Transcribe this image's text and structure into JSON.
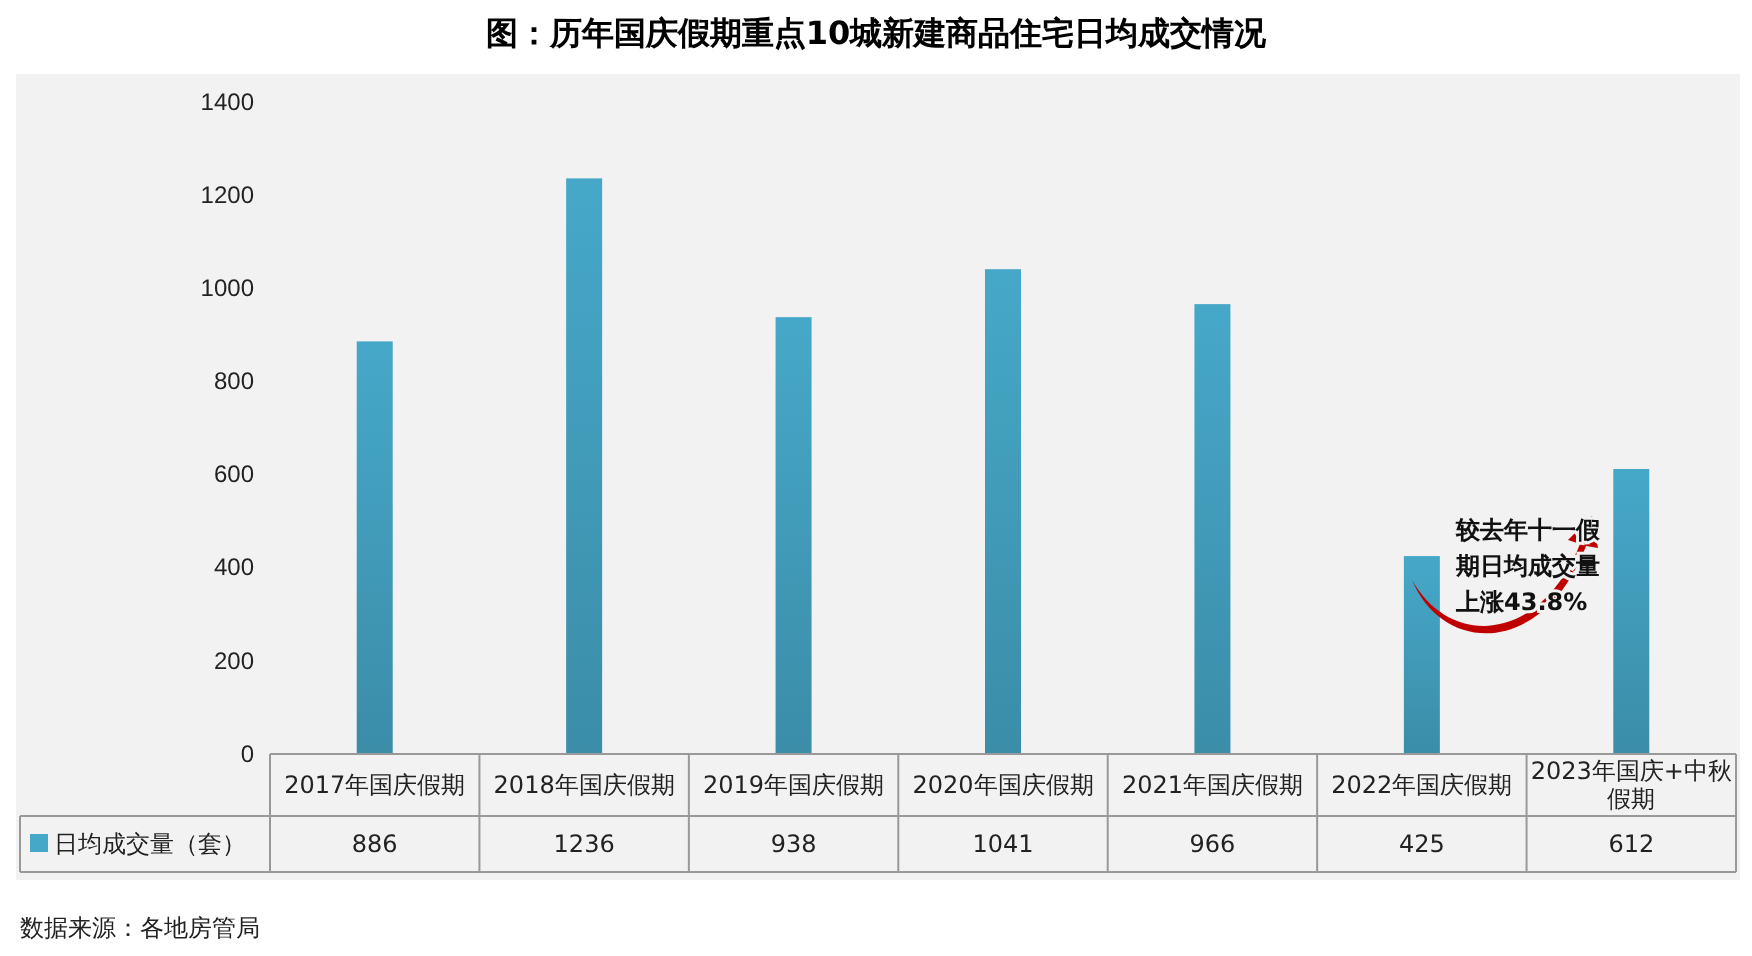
{
  "chart_data": {
    "type": "bar",
    "title": "图：历年国庆假期重点10城新建商品住宅日均成交情况",
    "categories": [
      "2017年国庆假期",
      "2018年国庆假期",
      "2019年国庆假期",
      "2020年国庆假期",
      "2021年国庆假期",
      "2022年国庆假期",
      "2023年国庆+中秋假期"
    ],
    "series": [
      {
        "name": "日均成交量（套）",
        "color": "#46a8c9",
        "values": [
          886,
          1236,
          938,
          1041,
          966,
          425,
          612
        ]
      }
    ],
    "ylim": [
      0,
      1400
    ],
    "yticks": [
      0,
      200,
      400,
      600,
      800,
      1000,
      1200,
      1400
    ],
    "grid": false,
    "legend": "bottom",
    "data_labels": true,
    "annotations": [
      "较去年十一假期日均成交量上涨43.8%",
      "数据来源：各地房管局"
    ]
  }
}
